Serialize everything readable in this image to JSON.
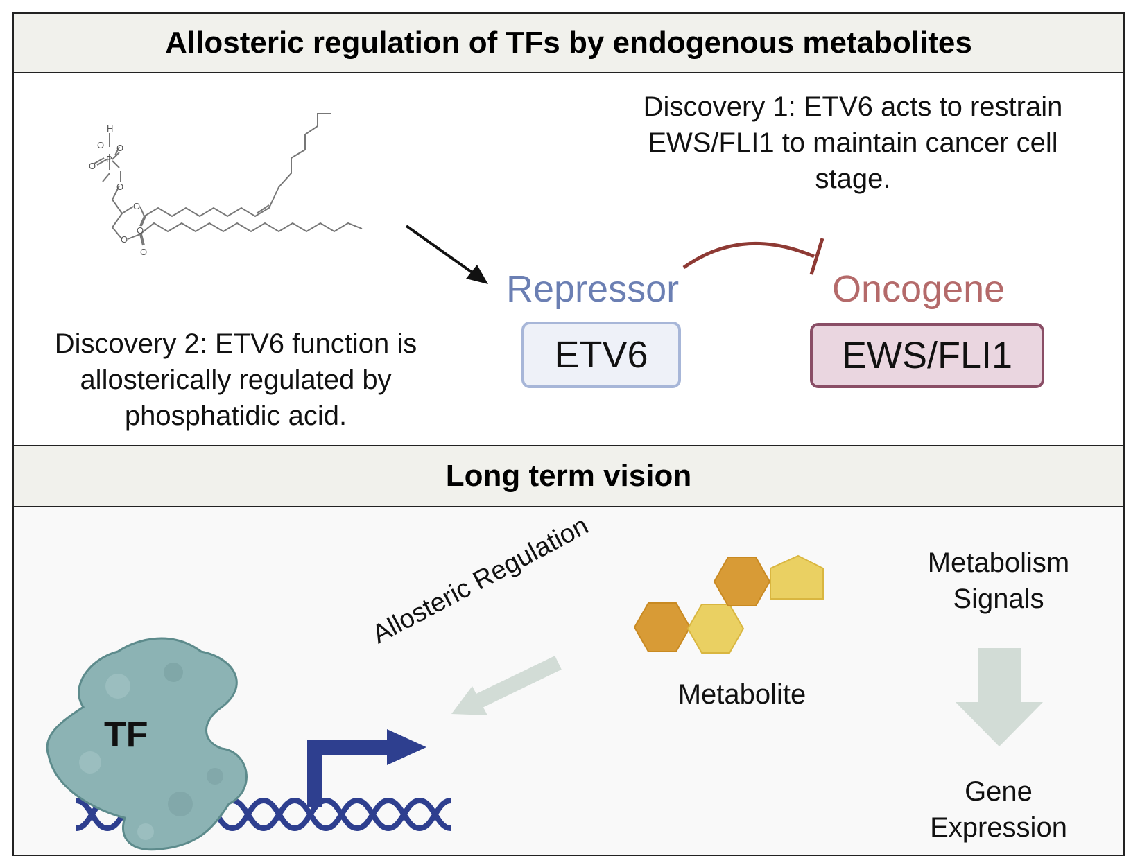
{
  "top": {
    "title": "Allosteric regulation of TFs by endogenous metabolites",
    "discovery1": "Discovery 1: ETV6 acts to restrain EWS/FLI1 to maintain cancer cell stage.",
    "discovery2": "Discovery 2: ETV6 function is allosterically regulated by phosphatidic acid.",
    "repressor_label": "Repressor",
    "repressor_box": "ETV6",
    "oncogene_label": "Oncogene",
    "oncogene_box": "EWS/FLI1",
    "molecule_atoms": {
      "h": "H",
      "o": "O",
      "p": "P"
    }
  },
  "bottom": {
    "title": "Long term vision",
    "tf_label": "TF",
    "arrow_label": "Allosteric Regulation",
    "metabolite_label": "Metabolite",
    "signals_line1": "Metabolism",
    "signals_line2": "Signals",
    "gene_line1": "Gene",
    "gene_line2": "Expression"
  },
  "colors": {
    "repressor": "#6b7fb3",
    "repressor_box_fill": "#eef1f8",
    "repressor_box_border": "#a7b6d8",
    "oncogene": "#b46a6a",
    "oncogene_box_fill": "#ead6e0",
    "oncogene_box_border": "#8a4e66",
    "inhibition": "#8e3a34",
    "tf_fill": "#8cb3b4",
    "dna": "#2e3f8f",
    "hex_dark": "#d89b36",
    "hex_light": "#ead062",
    "pale_arrow": "#d2dcd6"
  }
}
